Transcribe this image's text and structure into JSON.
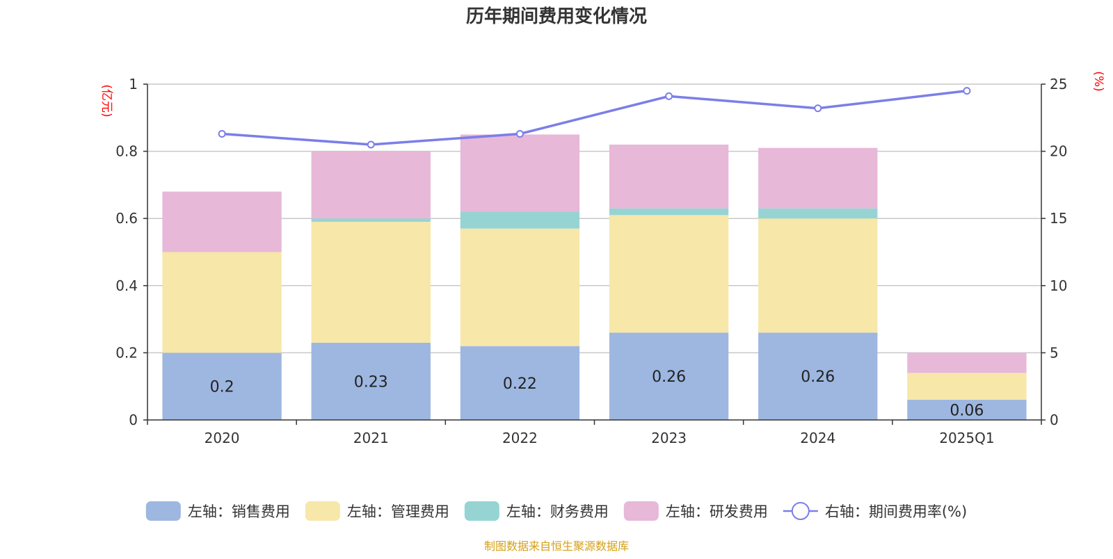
{
  "chart_data": {
    "type": "bar",
    "subtype": "stacked-bar-with-line",
    "title": "历年期间费用变化情况",
    "categories": [
      "2020",
      "2021",
      "2022",
      "2023",
      "2024",
      "2025Q1"
    ],
    "left_axis": {
      "unit_label": "(亿元)",
      "ylim": [
        0,
        1
      ],
      "ticks": [
        "0",
        "0.2",
        "0.4",
        "0.6",
        "0.8",
        "1"
      ],
      "tick_values": [
        0,
        0.2,
        0.4,
        0.6,
        0.8,
        1
      ]
    },
    "right_axis": {
      "unit_label": "(%)",
      "ylim": [
        0,
        25
      ],
      "ticks": [
        "0",
        "5",
        "10",
        "15",
        "20",
        "25"
      ],
      "tick_values": [
        0,
        5,
        10,
        15,
        20,
        25
      ]
    },
    "grid": true,
    "series": [
      {
        "name": "左轴：销售费用",
        "axis": "left",
        "type": "bar",
        "color": "#9db7e0",
        "values": [
          0.2,
          0.23,
          0.22,
          0.26,
          0.26,
          0.06
        ],
        "labels": [
          "0.2",
          "0.23",
          "0.22",
          "0.26",
          "0.26",
          "0.06"
        ]
      },
      {
        "name": "左轴：管理费用",
        "axis": "left",
        "type": "bar",
        "color": "#f7e7a9",
        "values": [
          0.3,
          0.36,
          0.35,
          0.35,
          0.34,
          0.08
        ]
      },
      {
        "name": "左轴：财务费用",
        "axis": "left",
        "type": "bar",
        "color": "#96d4d4",
        "values": [
          0.0,
          0.01,
          0.05,
          0.02,
          0.03,
          0.0
        ]
      },
      {
        "name": "左轴：研发费用",
        "axis": "left",
        "type": "bar",
        "color": "#e7b8d8",
        "values": [
          0.18,
          0.2,
          0.23,
          0.19,
          0.18,
          0.06
        ]
      },
      {
        "name": "右轴：期间费用率(%)",
        "axis": "right",
        "type": "line",
        "color": "#7b7ee8",
        "values": [
          21.3,
          20.5,
          21.3,
          24.1,
          23.2,
          24.5
        ]
      }
    ],
    "legend_position": "bottom-center",
    "source": "制图数据来自恒生聚源数据库",
    "source_color": "#d4a017"
  }
}
